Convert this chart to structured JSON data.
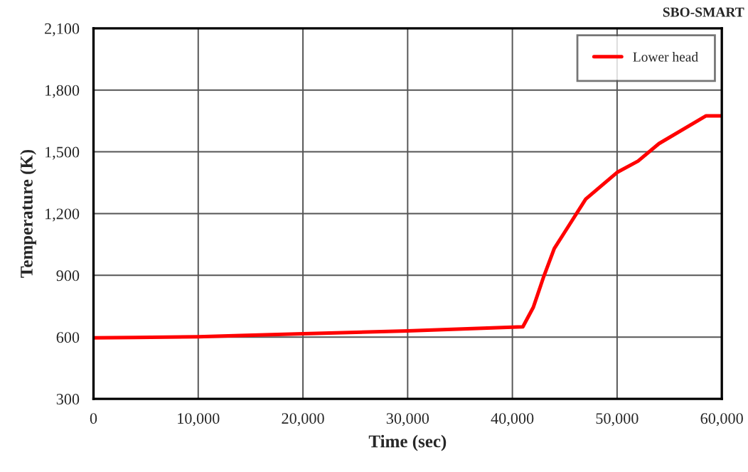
{
  "chart_data": {
    "type": "line",
    "title": "SBO-SMART",
    "xlabel": "Time (sec)",
    "ylabel": "Temperature (K)",
    "x": [
      0,
      4000,
      10000,
      14000,
      20000,
      30000,
      40000,
      41000,
      42000,
      43000,
      44000,
      45000,
      47000,
      50000,
      52000,
      54000,
      58500,
      60000
    ],
    "series": [
      {
        "name": "Lower head",
        "color": "#ff0000",
        "values": [
          596,
          598,
          602,
          608,
          616,
          630,
          648,
          650,
          745,
          895,
          1030,
          1110,
          1270,
          1400,
          1455,
          1540,
          1675,
          1675
        ]
      }
    ],
    "xlim": [
      0,
      60000
    ],
    "xticks": [
      {
        "value": 0,
        "label": "0"
      },
      {
        "value": 10000,
        "label": "10,000"
      },
      {
        "value": 20000,
        "label": "20,000"
      },
      {
        "value": 30000,
        "label": "30,000"
      },
      {
        "value": 40000,
        "label": "40,000"
      },
      {
        "value": 50000,
        "label": "50,000"
      },
      {
        "value": 60000,
        "label": "60,000"
      }
    ],
    "ylim": [
      300,
      2100
    ],
    "yticks": [
      {
        "value": 300,
        "label": "300"
      },
      {
        "value": 600,
        "label": "600"
      },
      {
        "value": 900,
        "label": "900"
      },
      {
        "value": 1200,
        "label": "1,200"
      },
      {
        "value": 1500,
        "label": "1,500"
      },
      {
        "value": 1800,
        "label": "1,800"
      },
      {
        "value": 2100,
        "label": "2,100"
      }
    ],
    "grid": true,
    "legend": "top right",
    "line_style": "solid",
    "marker": "none"
  }
}
